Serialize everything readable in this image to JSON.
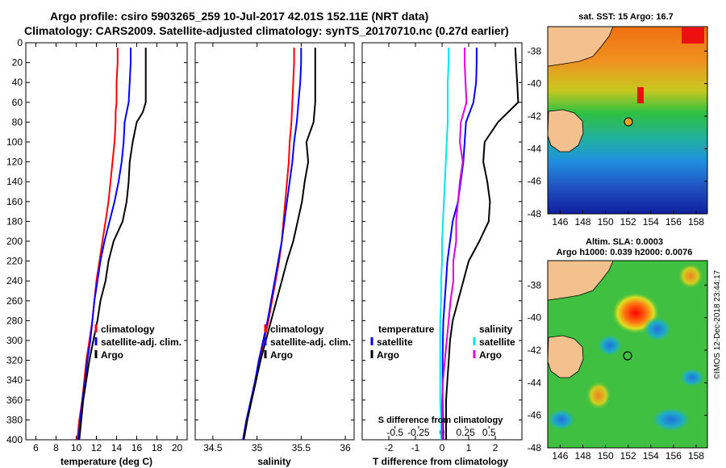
{
  "header": {
    "line1": "Argo profile: csiro 5903265_259 10-Jul-2017 42.01S 152.11E (NRT data)",
    "line2": "Climatology: CARS2009. Satellite-adjusted climatology: synTS_20170710.nc (0.27d earlier)"
  },
  "depth_ticks": [
    "0",
    "20",
    "40",
    "60",
    "80",
    "100",
    "120",
    "140",
    "160",
    "180",
    "200",
    "220",
    "240",
    "260",
    "280",
    "300",
    "320",
    "340",
    "360",
    "380",
    "400"
  ],
  "colors": {
    "climatology": "#ff0000",
    "satellite": "#0000ff",
    "argo": "#000000",
    "salinity_sat": "#00e5ee",
    "salinity_argo": "#dd00dd",
    "land": "#f4c08e"
  },
  "chart_data": [
    {
      "type": "line",
      "id": "temperature",
      "xlabel": "temperature (deg C)",
      "ylabel": "depth",
      "xlim": [
        5,
        21
      ],
      "ylim": [
        400,
        0
      ],
      "xticks": [
        "6",
        "8",
        "10",
        "12",
        "14",
        "16",
        "18",
        "20"
      ],
      "xtick_values": [
        6,
        8,
        10,
        12,
        14,
        16,
        18,
        20
      ],
      "depth": [
        5,
        20,
        40,
        60,
        70,
        80,
        100,
        120,
        140,
        160,
        180,
        200,
        220,
        240,
        260,
        280,
        300,
        320,
        340,
        360,
        380,
        400
      ],
      "series": [
        {
          "name": "climatology",
          "values": [
            14.1,
            14.1,
            14.0,
            14.0,
            13.9,
            13.9,
            13.8,
            13.6,
            13.4,
            13.2,
            12.9,
            12.6,
            12.3,
            12.0,
            11.8,
            11.6,
            11.3,
            11.0,
            10.8,
            10.6,
            10.3,
            10.1
          ]
        },
        {
          "name": "satellite-adj. clim.",
          "values": [
            15.4,
            15.4,
            15.3,
            15.2,
            15.0,
            14.8,
            14.7,
            14.5,
            14.2,
            13.8,
            13.3,
            12.8,
            12.4,
            12.1,
            11.8,
            11.6,
            11.4,
            11.1,
            10.9,
            10.6,
            10.4,
            10.2
          ]
        },
        {
          "name": "Argo",
          "values": [
            16.9,
            16.9,
            16.9,
            16.9,
            16.6,
            16.0,
            15.6,
            15.3,
            15.2,
            15.0,
            14.6,
            13.7,
            13.2,
            12.9,
            12.4,
            12.1,
            11.7,
            11.3,
            11.0,
            10.7,
            10.5,
            10.3
          ]
        }
      ],
      "legend": [
        "climatology",
        "satellite-adj. clim.",
        "Argo"
      ]
    },
    {
      "type": "line",
      "id": "salinity",
      "xlabel": "salinity",
      "ylabel": "depth",
      "xlim": [
        34.3,
        36.1
      ],
      "ylim": [
        400,
        0
      ],
      "xticks": [
        "34.5",
        "35",
        "35.5",
        "36"
      ],
      "xtick_values": [
        34.5,
        35,
        35.5,
        36
      ],
      "depth": [
        5,
        20,
        40,
        60,
        80,
        100,
        120,
        140,
        160,
        180,
        200,
        220,
        240,
        260,
        280,
        300,
        320,
        340,
        360,
        380,
        400
      ],
      "series": [
        {
          "name": "climatology",
          "values": [
            35.42,
            35.42,
            35.41,
            35.4,
            35.39,
            35.37,
            35.36,
            35.34,
            35.32,
            35.3,
            35.28,
            35.25,
            35.21,
            35.17,
            35.13,
            35.08,
            35.03,
            34.99,
            34.94,
            34.89,
            34.85
          ]
        },
        {
          "name": "satellite-adj. clim.",
          "values": [
            35.5,
            35.5,
            35.49,
            35.47,
            35.45,
            35.42,
            35.4,
            35.37,
            35.34,
            35.31,
            35.28,
            35.24,
            35.2,
            35.16,
            35.12,
            35.07,
            35.02,
            34.98,
            34.93,
            34.88,
            34.84
          ]
        },
        {
          "name": "Argo",
          "values": [
            35.66,
            35.66,
            35.66,
            35.66,
            35.64,
            35.56,
            35.58,
            35.54,
            35.51,
            35.46,
            35.41,
            35.34,
            35.28,
            35.22,
            35.16,
            35.1,
            35.04,
            34.99,
            34.94,
            34.89,
            34.85
          ]
        }
      ],
      "legend": [
        "climatology",
        "satellite-adj. clim.",
        "Argo"
      ]
    },
    {
      "type": "line",
      "id": "differences",
      "xlabel": "T difference from climatology",
      "top_axis_label": "S difference from climatology",
      "xlim": [
        -3,
        3
      ],
      "ylim": [
        400,
        0
      ],
      "xticks": [
        "-2",
        "-1",
        "0",
        "1",
        "2"
      ],
      "xtick_values": [
        -2,
        -1,
        0,
        1,
        2
      ],
      "sticks": [
        "-0.5",
        "-0.25",
        "0",
        "0.25",
        "0.5"
      ],
      "stick_values": [
        -0.5,
        -0.25,
        0,
        0.25,
        0.5
      ],
      "depth": [
        5,
        20,
        40,
        60,
        80,
        100,
        120,
        140,
        160,
        180,
        200,
        220,
        240,
        260,
        280,
        300,
        320,
        340,
        360,
        380,
        400
      ],
      "series": [
        {
          "name": "temperature satellite",
          "values": [
            1.3,
            1.3,
            1.28,
            1.18,
            0.9,
            0.85,
            0.8,
            0.7,
            0.6,
            0.4,
            0.3,
            0.2,
            0.15,
            0.1,
            0.05,
            0.03,
            0.02,
            0.02,
            0.02,
            0.03,
            0.05
          ]
        },
        {
          "name": "temperature Argo",
          "values": [
            2.75,
            2.78,
            2.82,
            2.86,
            2.1,
            1.6,
            1.55,
            1.7,
            1.8,
            1.75,
            1.4,
            1.0,
            0.8,
            0.6,
            0.4,
            0.3,
            0.25,
            0.2,
            0.15,
            0.15,
            0.15
          ]
        },
        {
          "name": "salinity satellite",
          "values": [
            0.07,
            0.07,
            0.06,
            0.06,
            0.06,
            0.05,
            0.04,
            0.03,
            0.02,
            0.01,
            0.0,
            0.0,
            -0.01,
            -0.01,
            -0.02,
            -0.02,
            -0.02,
            -0.02,
            -0.02,
            -0.01,
            -0.01
          ]
        },
        {
          "name": "salinity Argo",
          "values": [
            0.24,
            0.24,
            0.25,
            0.26,
            0.2,
            0.19,
            0.22,
            0.19,
            0.17,
            0.15,
            0.15,
            0.12,
            0.12,
            0.09,
            0.07,
            0.05,
            0.03,
            0.01,
            0.0,
            0.0,
            0.0
          ]
        }
      ],
      "legend_temperature": {
        "title": "temperature",
        "items": [
          "satellite",
          "Argo"
        ]
      },
      "legend_salinity": {
        "title": "salinity",
        "items": [
          "satellite",
          "Argo"
        ]
      }
    }
  ],
  "maps": {
    "sst": {
      "title": "sat. SST: 15 Argo: 16.7",
      "lat_ticks": [
        "-38",
        "-40",
        "-42",
        "-44",
        "-46",
        "-48"
      ],
      "lon_ticks": [
        "146",
        "148",
        "150",
        "152",
        "154",
        "156",
        "158"
      ]
    },
    "sla": {
      "title1": "Altim. SLA: 0.0003",
      "title2": "Argo h1000: 0.039 h2000: 0.0076",
      "lat_ticks": [
        "-38",
        "-40",
        "-42",
        "-44",
        "-46",
        "-48"
      ],
      "lon_ticks": [
        "146",
        "148",
        "150",
        "152",
        "154",
        "156",
        "158"
      ]
    }
  },
  "timestamp": "©IMOS 12-Dec-2018 23:44:17"
}
